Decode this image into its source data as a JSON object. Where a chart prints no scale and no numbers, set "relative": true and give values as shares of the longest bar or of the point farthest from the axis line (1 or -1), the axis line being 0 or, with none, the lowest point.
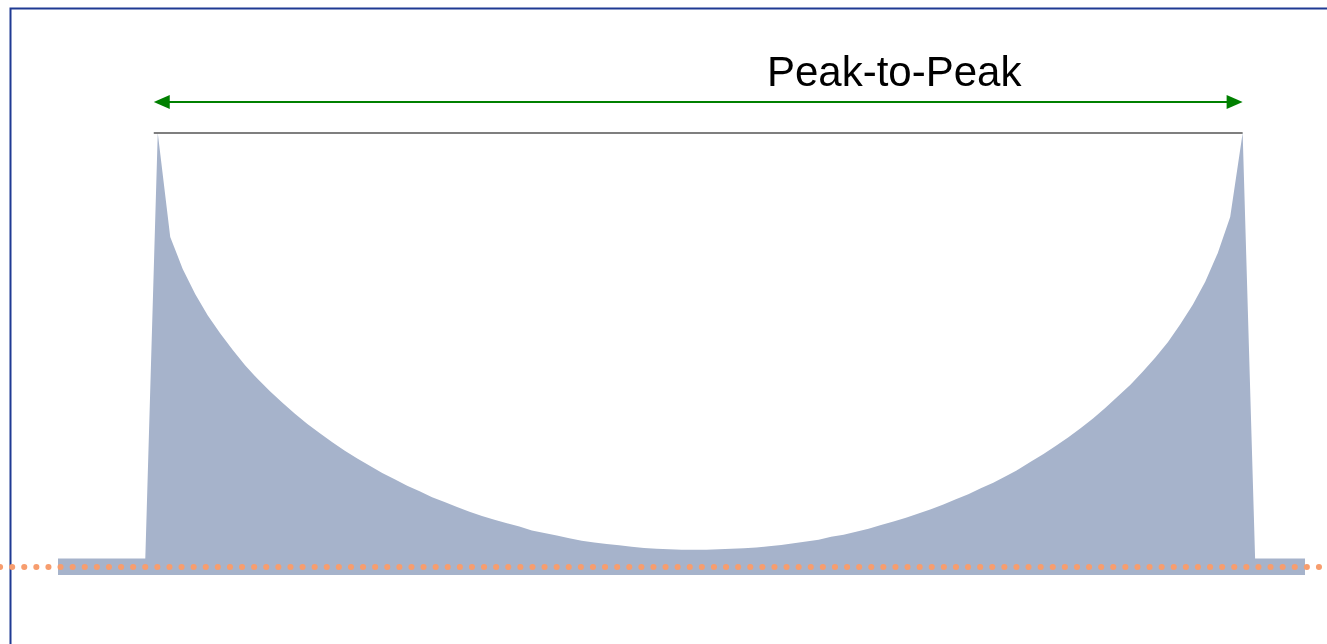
{
  "chart_data": {
    "type": "area",
    "relative": true,
    "color": "#a6b3cb",
    "categories": [
      null,
      null,
      null,
      null,
      null,
      null,
      null,
      null,
      null,
      null,
      null,
      null,
      null,
      null,
      null,
      null,
      null,
      null,
      null,
      null,
      null,
      null,
      null,
      null,
      null,
      null,
      null,
      null,
      null,
      null,
      null,
      null,
      null,
      null,
      null,
      null,
      null,
      null,
      null,
      null,
      null,
      null,
      null,
      null,
      null,
      null,
      null,
      null,
      null,
      null,
      null,
      null,
      null,
      null,
      null,
      null,
      null,
      null,
      null,
      null,
      null,
      null,
      null,
      null,
      null,
      null,
      null,
      null,
      null,
      null,
      null,
      null,
      null,
      null,
      null,
      null,
      null,
      null,
      null,
      null,
      null,
      null,
      null,
      null,
      null,
      null,
      null,
      null,
      null,
      null,
      null,
      null,
      null,
      null,
      null,
      null,
      null,
      null,
      null,
      null,
      null
    ],
    "values": [
      0,
      0,
      0,
      0,
      0,
      0,
      0,
      0,
      1.0,
      0.756,
      0.681,
      0.622,
      0.572,
      0.53,
      0.491,
      0.455,
      0.423,
      0.394,
      0.367,
      0.341,
      0.317,
      0.295,
      0.274,
      0.254,
      0.236,
      0.219,
      0.202,
      0.187,
      0.172,
      0.159,
      0.145,
      0.134,
      0.122,
      0.111,
      0.101,
      0.092,
      0.084,
      0.076,
      0.067,
      0.061,
      0.055,
      0.049,
      0.043,
      0.039,
      0.035,
      0.032,
      0.029,
      0.026,
      0.024,
      0.023,
      0.022,
      0.022,
      0.022,
      0.023,
      0.024,
      0.025,
      0.027,
      0.03,
      0.033,
      0.037,
      0.041,
      0.045,
      0.052,
      0.057,
      0.064,
      0.071,
      0.08,
      0.088,
      0.097,
      0.107,
      0.117,
      0.128,
      0.14,
      0.152,
      0.166,
      0.179,
      0.194,
      0.21,
      0.228,
      0.246,
      0.265,
      0.285,
      0.307,
      0.33,
      0.355,
      0.382,
      0.409,
      0.44,
      0.473,
      0.509,
      0.551,
      0.597,
      0.651,
      0.718,
      0.803,
      1.0,
      0,
      0,
      0,
      0,
      0
    ],
    "annotations": [
      "Peak-to-Peak"
    ]
  }
}
